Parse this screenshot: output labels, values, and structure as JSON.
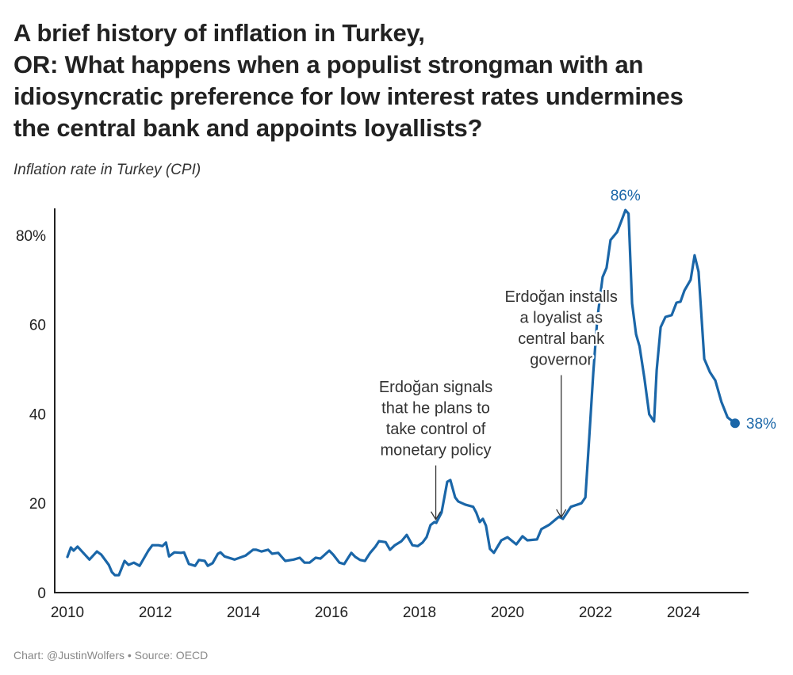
{
  "title_lines": [
    "A brief history of inflation in Turkey,",
    "OR: What happens when a populist strongman with an",
    "idiosyncratic preference for low interest rates undermines",
    "the central bank and appoints loyallists?"
  ],
  "subtitle": "Inflation rate in Turkey (CPI)",
  "footer": "Chart: @JustinWolfers • Source: OECD",
  "colors": {
    "line": "#1a66a8",
    "axis": "#222222",
    "annotation": "#333333"
  },
  "chart_data": {
    "type": "line",
    "title": "Inflation rate in Turkey (CPI)",
    "xlabel": "",
    "ylabel": "",
    "xlim": [
      2009.7,
      2025.7
    ],
    "ylim": [
      0,
      86
    ],
    "grid": false,
    "x_ticks": [
      2010,
      2012,
      2014,
      2016,
      2018,
      2020,
      2022,
      2024
    ],
    "x_tick_labels": [
      "2010",
      "2012",
      "2014",
      "2016",
      "2018",
      "2020",
      "2022",
      "2024"
    ],
    "y_ticks": [
      0,
      20,
      40,
      60,
      80
    ],
    "y_tick_labels": [
      "0",
      "20",
      "40",
      "60",
      "80%"
    ],
    "series": [
      {
        "name": "CPI inflation",
        "points": [
          [
            2010.0,
            8.0
          ],
          [
            2010.08,
            10.1
          ],
          [
            2010.14,
            9.4
          ],
          [
            2010.23,
            10.3
          ],
          [
            2010.36,
            8.9
          ],
          [
            2010.5,
            7.4
          ],
          [
            2010.67,
            9.2
          ],
          [
            2010.77,
            8.5
          ],
          [
            2010.94,
            6.2
          ],
          [
            2011.01,
            4.6
          ],
          [
            2011.08,
            3.9
          ],
          [
            2011.17,
            3.9
          ],
          [
            2011.3,
            7.1
          ],
          [
            2011.39,
            6.2
          ],
          [
            2011.51,
            6.7
          ],
          [
            2011.64,
            6.0
          ],
          [
            2011.84,
            9.4
          ],
          [
            2011.93,
            10.6
          ],
          [
            2012.07,
            10.6
          ],
          [
            2012.16,
            10.4
          ],
          [
            2012.24,
            11.2
          ],
          [
            2012.31,
            8.1
          ],
          [
            2012.43,
            9.0
          ],
          [
            2012.58,
            8.9
          ],
          [
            2012.65,
            9.0
          ],
          [
            2012.76,
            6.4
          ],
          [
            2012.9,
            6.0
          ],
          [
            2012.99,
            7.3
          ],
          [
            2013.12,
            7.1
          ],
          [
            2013.19,
            6.0
          ],
          [
            2013.3,
            6.6
          ],
          [
            2013.42,
            8.7
          ],
          [
            2013.48,
            9.0
          ],
          [
            2013.57,
            8.1
          ],
          [
            2013.8,
            7.4
          ],
          [
            2014.05,
            8.3
          ],
          [
            2014.22,
            9.6
          ],
          [
            2014.29,
            9.6
          ],
          [
            2014.41,
            9.2
          ],
          [
            2014.56,
            9.6
          ],
          [
            2014.65,
            8.7
          ],
          [
            2014.79,
            8.9
          ],
          [
            2014.95,
            7.1
          ],
          [
            2015.14,
            7.4
          ],
          [
            2015.28,
            7.8
          ],
          [
            2015.39,
            6.7
          ],
          [
            2015.5,
            6.7
          ],
          [
            2015.64,
            7.8
          ],
          [
            2015.75,
            7.6
          ],
          [
            2015.95,
            9.4
          ],
          [
            2016.04,
            8.5
          ],
          [
            2016.18,
            6.7
          ],
          [
            2016.29,
            6.4
          ],
          [
            2016.45,
            8.9
          ],
          [
            2016.54,
            8.0
          ],
          [
            2016.65,
            7.3
          ],
          [
            2016.76,
            7.1
          ],
          [
            2016.88,
            8.9
          ],
          [
            2017.0,
            10.3
          ],
          [
            2017.08,
            11.5
          ],
          [
            2017.23,
            11.3
          ],
          [
            2017.33,
            9.6
          ],
          [
            2017.44,
            10.6
          ],
          [
            2017.59,
            11.5
          ],
          [
            2017.71,
            12.9
          ],
          [
            2017.84,
            10.6
          ],
          [
            2017.96,
            10.4
          ],
          [
            2018.07,
            11.2
          ],
          [
            2018.16,
            12.4
          ],
          [
            2018.25,
            15.1
          ],
          [
            2018.34,
            15.8
          ],
          [
            2018.38,
            15.6
          ],
          [
            2018.5,
            17.9
          ],
          [
            2018.63,
            24.8
          ],
          [
            2018.7,
            25.2
          ],
          [
            2018.81,
            21.3
          ],
          [
            2018.88,
            20.4
          ],
          [
            2019.04,
            19.7
          ],
          [
            2019.22,
            19.2
          ],
          [
            2019.29,
            17.9
          ],
          [
            2019.37,
            15.8
          ],
          [
            2019.44,
            16.5
          ],
          [
            2019.51,
            15.0
          ],
          [
            2019.6,
            9.8
          ],
          [
            2019.69,
            8.9
          ],
          [
            2019.86,
            11.7
          ],
          [
            2020.0,
            12.4
          ],
          [
            2020.2,
            10.8
          ],
          [
            2020.34,
            12.6
          ],
          [
            2020.45,
            11.7
          ],
          [
            2020.67,
            11.9
          ],
          [
            2020.77,
            14.2
          ],
          [
            2020.95,
            15.2
          ],
          [
            2021.17,
            17.0
          ],
          [
            2021.26,
            16.5
          ],
          [
            2021.44,
            19.2
          ],
          [
            2021.68,
            20.0
          ],
          [
            2021.77,
            21.3
          ],
          [
            2021.86,
            35.1
          ],
          [
            2021.95,
            49.3
          ],
          [
            2022.04,
            61.2
          ],
          [
            2022.16,
            70.6
          ],
          [
            2022.25,
            72.7
          ],
          [
            2022.34,
            78.9
          ],
          [
            2022.49,
            80.7
          ],
          [
            2022.58,
            83.0
          ],
          [
            2022.68,
            85.6
          ],
          [
            2022.75,
            84.8
          ],
          [
            2022.83,
            64.7
          ],
          [
            2022.92,
            57.8
          ],
          [
            2023.0,
            55.1
          ],
          [
            2023.11,
            48.0
          ],
          [
            2023.22,
            39.9
          ],
          [
            2023.33,
            38.3
          ],
          [
            2023.39,
            49.8
          ],
          [
            2023.48,
            59.4
          ],
          [
            2023.59,
            61.7
          ],
          [
            2023.73,
            62.1
          ],
          [
            2023.84,
            64.9
          ],
          [
            2023.93,
            65.1
          ],
          [
            2024.02,
            67.6
          ],
          [
            2024.16,
            70.0
          ],
          [
            2024.25,
            75.5
          ],
          [
            2024.34,
            71.8
          ],
          [
            2024.47,
            52.3
          ],
          [
            2024.6,
            49.3
          ],
          [
            2024.72,
            47.5
          ],
          [
            2024.86,
            42.7
          ],
          [
            2025.0,
            39.2
          ],
          [
            2025.17,
            37.9
          ]
        ]
      }
    ],
    "annotations": [
      {
        "lines": [
          "Erdoğan signals",
          "that he plans to",
          "take control of",
          "monetary policy"
        ],
        "x": 2018.37,
        "arrow_to": 16
      },
      {
        "lines": [
          "Erdoğan installs",
          "a loyalist as",
          "central bank",
          "governor"
        ],
        "x": 2021.22,
        "arrow_to": 16.5
      }
    ],
    "labels": {
      "peak": "86%",
      "peak_x": 2022.68,
      "peak_y": 85.6,
      "last": "38%",
      "last_x": 2025.17,
      "last_y": 37.9
    }
  }
}
